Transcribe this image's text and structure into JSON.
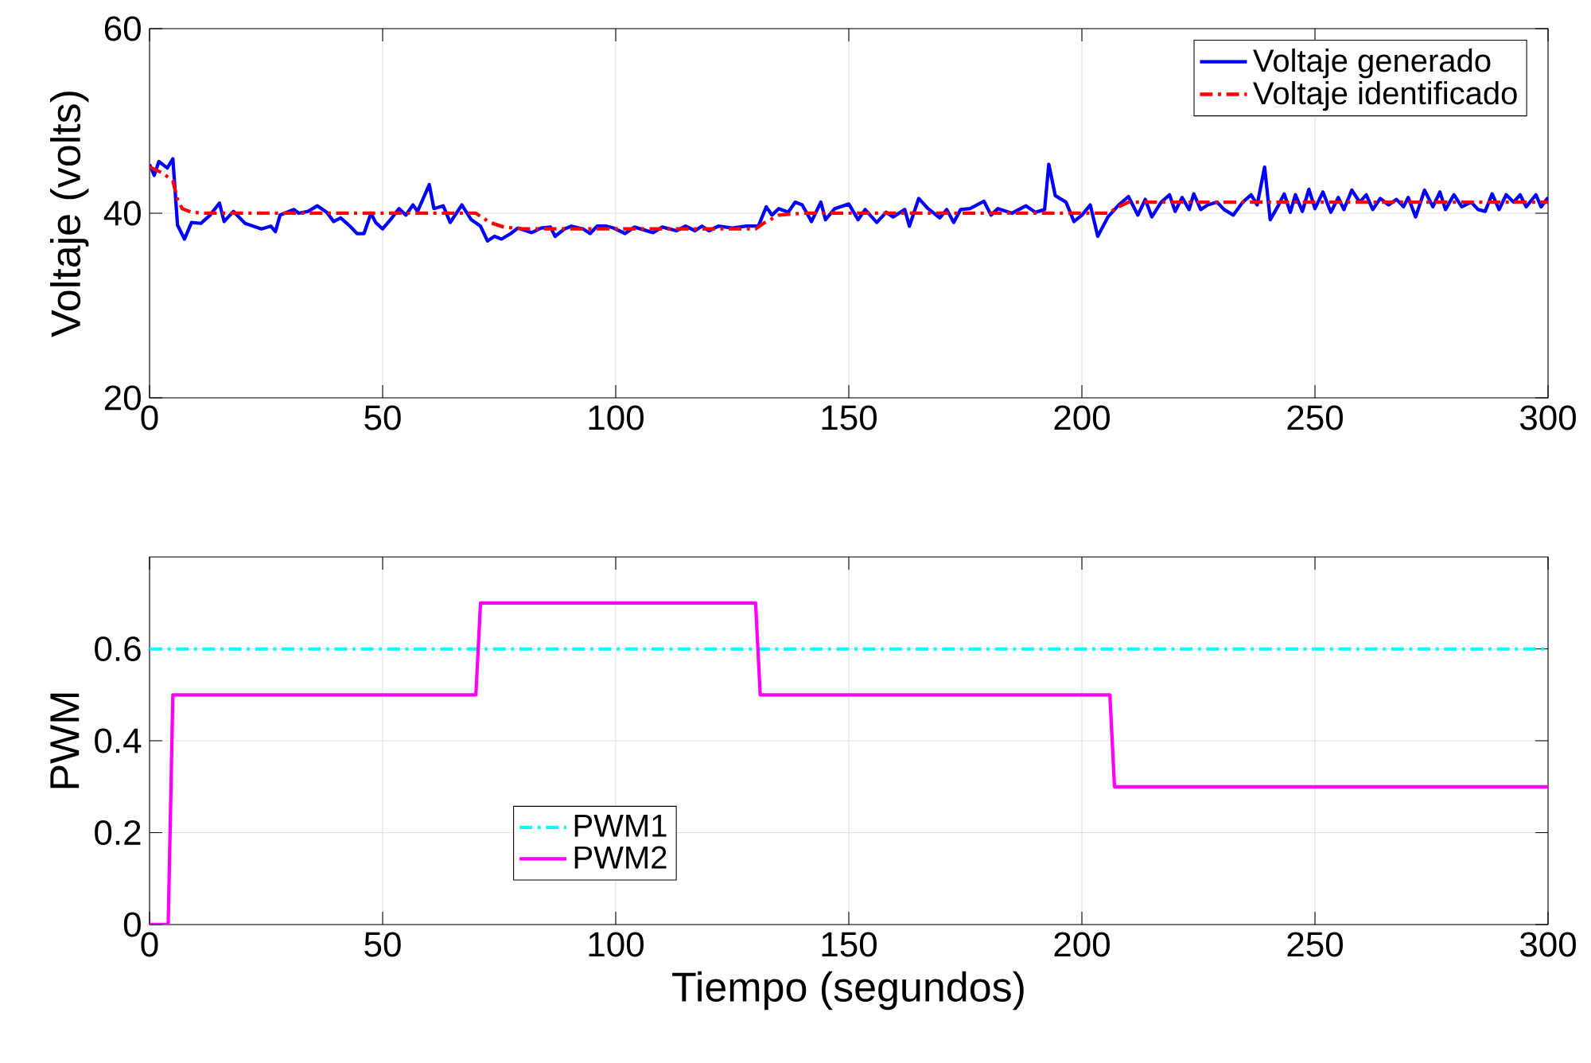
{
  "chart_data": [
    {
      "type": "line",
      "ylabel": "Voltaje (volts)",
      "xlim": [
        0,
        300
      ],
      "xticks": [
        0,
        50,
        100,
        150,
        200,
        250,
        300
      ],
      "ylim": [
        20,
        60
      ],
      "yticks": [
        20,
        40,
        60
      ],
      "grid": true,
      "legend": "top right",
      "series": [
        {
          "name": "Voltaje generado",
          "color": "#0000ff",
          "line_style": "solid",
          "x": [
            0,
            1,
            2,
            3.8,
            5,
            6,
            7.5,
            9,
            11,
            13,
            15,
            16,
            18,
            20.5,
            24,
            26,
            27,
            28,
            31,
            32,
            34,
            36,
            38,
            39.5,
            41,
            43,
            44.5,
            46,
            47.5,
            48.5,
            50,
            52,
            53.5,
            55,
            56.5,
            57.5,
            60,
            61,
            63,
            64.5,
            67,
            69,
            71,
            72.5,
            74,
            75.5,
            77.5,
            79,
            82,
            84,
            86,
            87,
            89,
            90.5,
            93,
            94.5,
            96,
            98,
            99.5,
            102,
            104,
            108,
            110,
            113,
            115,
            117,
            118.5,
            120,
            122,
            125,
            128,
            130.6,
            132.3,
            133.5,
            135,
            137,
            138.5,
            140,
            142,
            144,
            145,
            147,
            150,
            152,
            153.5,
            156,
            158,
            159.5,
            162,
            163,
            165,
            167,
            169.5,
            171,
            172.5,
            174,
            176,
            179,
            180.5,
            182,
            185,
            188,
            190,
            192,
            192.9,
            194.3,
            196.6,
            198.3,
            200,
            201.8,
            203.4,
            205.6,
            207.9,
            210,
            212,
            213.6,
            215,
            217,
            218.8,
            220,
            221.5,
            223,
            224,
            225.5,
            227,
            229,
            230.5,
            232.5,
            234.5,
            236.3,
            237.6,
            239.2,
            240.4,
            242,
            243.4,
            244.7,
            245.8,
            247.3,
            248.7,
            250,
            251.7,
            253.4,
            255,
            256.2,
            257.9,
            259.6,
            261,
            262.4,
            264,
            265.8,
            267.5,
            269,
            270,
            271.6,
            273.5,
            275.3,
            276.8,
            278,
            279.8,
            281.5,
            283.5,
            285,
            286.5,
            288,
            289.5,
            291,
            292.6,
            294,
            295.3,
            297.4,
            298.5,
            300
          ],
          "values": [
            45.3,
            44.1,
            45.6,
            44.9,
            45.9,
            38.7,
            37.2,
            39,
            38.9,
            39.8,
            41.1,
            39.1,
            40.2,
            38.9,
            38.3,
            38.6,
            38,
            39.8,
            40.4,
            40,
            40.2,
            40.8,
            40.1,
            39.1,
            39.5,
            38.6,
            37.8,
            37.8,
            40,
            39,
            38.3,
            39.5,
            40.5,
            39.8,
            40.9,
            40.2,
            43.1,
            40.5,
            40.8,
            39,
            40.9,
            39.3,
            38.6,
            37,
            37.5,
            37.2,
            37.8,
            38.4,
            37.9,
            38.4,
            38.5,
            37.5,
            38.3,
            38.6,
            38.3,
            37.8,
            38.6,
            38.6,
            38.4,
            37.8,
            38.5,
            37.9,
            38.5,
            38.1,
            38.6,
            38.1,
            38.6,
            38.1,
            38.6,
            38.4,
            38.6,
            38.6,
            40.7,
            39.8,
            40.5,
            40.1,
            41.2,
            40.9,
            39.1,
            41.2,
            39.3,
            40.5,
            41,
            39.3,
            40.4,
            39,
            40.1,
            39.6,
            40.4,
            38.6,
            41.6,
            40.5,
            39.5,
            40.4,
            39,
            40.4,
            40.5,
            41.3,
            39.8,
            40.5,
            40,
            40.8,
            40.1,
            40.4,
            45.3,
            41.9,
            41.2,
            39.1,
            39.8,
            40.9,
            37.5,
            39.6,
            40.9,
            41.8,
            39.8,
            41.5,
            39.6,
            41.2,
            42,
            40.2,
            41.7,
            40.4,
            42.1,
            40.4,
            40.9,
            41.2,
            40.4,
            39.8,
            41.2,
            42,
            40.9,
            45,
            39.3,
            40.7,
            42.1,
            40.1,
            42,
            40.2,
            42.6,
            40.5,
            42.3,
            40.1,
            41.7,
            40.4,
            42.5,
            41.2,
            42,
            40.4,
            41.6,
            40.9,
            41.5,
            40.7,
            41.7,
            39.6,
            42.5,
            40.7,
            42.3,
            40.4,
            42,
            40.7,
            41.2,
            40.4,
            40.2,
            42.1,
            40.4,
            42,
            41.2,
            42,
            40.7,
            42,
            40.7,
            41.7
          ]
        },
        {
          "name": "Voltaje identificado",
          "color": "#ff0000",
          "line_style": "dashdot",
          "x": [
            0,
            3,
            5,
            6,
            7,
            9,
            12,
            70,
            73,
            76,
            80,
            130,
            132,
            135,
            140,
            206,
            207,
            210,
            300
          ],
          "values": [
            45,
            44.3,
            43.5,
            41.5,
            40.5,
            40.1,
            40,
            40,
            39,
            38.5,
            38.3,
            38.3,
            39,
            39.8,
            40,
            40,
            40.5,
            41.2,
            41.2
          ]
        }
      ]
    },
    {
      "type": "line",
      "xlabel": "Tiempo (segundos)",
      "ylabel": "PWM",
      "xlim": [
        0,
        300
      ],
      "xticks": [
        0,
        50,
        100,
        150,
        200,
        250,
        300
      ],
      "ylim": [
        0,
        0.8
      ],
      "yticks": [
        0,
        0.2,
        0.4,
        0.6
      ],
      "grid": true,
      "legend": "bottom left",
      "series": [
        {
          "name": "PWM1",
          "color": "#00ffff",
          "line_style": "dashdot",
          "x": [
            0,
            300
          ],
          "values": [
            0.6,
            0.6
          ]
        },
        {
          "name": "PWM2",
          "color": "#ff00ff",
          "line_style": "solid",
          "x": [
            0,
            4,
            5,
            70,
            71,
            130,
            131,
            206,
            207,
            300
          ],
          "values": [
            0,
            0,
            0.5,
            0.5,
            0.7,
            0.7,
            0.5,
            0.5,
            0.3,
            0.3
          ]
        }
      ]
    }
  ]
}
